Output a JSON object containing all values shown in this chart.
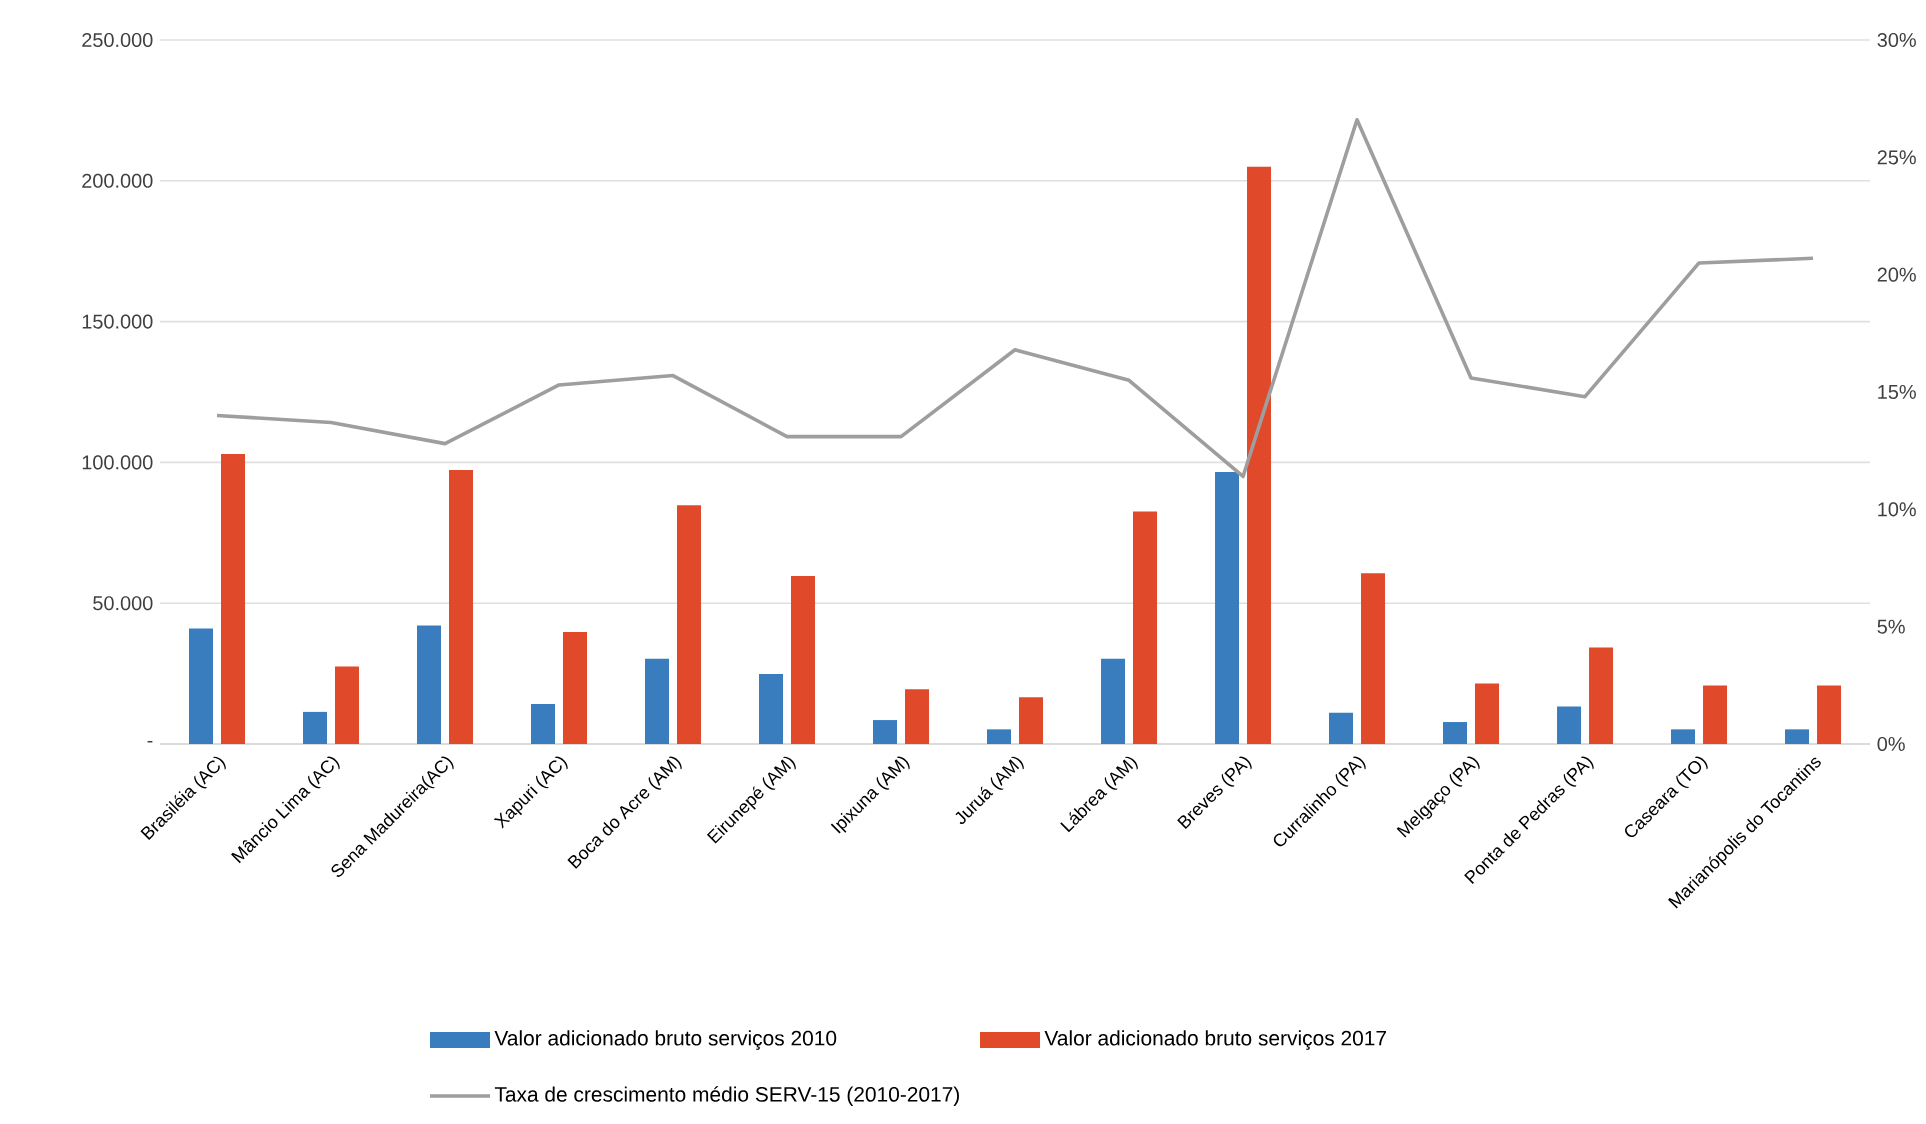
{
  "chart_data": {
    "type": "bar",
    "categories": [
      "Brasiléia (AC)",
      "Mâncio Lima (AC)",
      "Sena Madureira(AC)",
      "Xapuri (AC)",
      "Boca do Acre (AM)",
      "Eirunepé (AM)",
      "Ipixuna (AM)",
      "Juruá (AM)",
      "Lábrea (AM)",
      "Breves (PA)",
      "Curralinho (PA)",
      "Melgaço (PA)",
      "Ponta de Pedras (PA)",
      "Caseara (TO)",
      "Marianópolis do Tocantins"
    ],
    "series": [
      {
        "name": "Valor adicionado bruto serviços 2010",
        "color": "#3a7dbf",
        "values": [
          41000,
          11400,
          42100,
          14200,
          30300,
          24900,
          8500,
          5200,
          30300,
          96600,
          11100,
          7800,
          13300,
          5200,
          5200
        ]
      },
      {
        "name": "Valor adicionado bruto serviços 2017",
        "color": "#e0492a",
        "values": [
          103000,
          27500,
          97300,
          39800,
          84800,
          59700,
          19400,
          16600,
          82600,
          205000,
          60600,
          21500,
          34300,
          20800,
          20800
        ]
      },
      {
        "name": "Taxa de crescimento médio SERV-15 (2010-2017)",
        "type": "line",
        "axis": "y2",
        "color": "#9e9e9e",
        "values": [
          14.0,
          13.7,
          12.8,
          15.3,
          15.7,
          13.1,
          13.1,
          16.8,
          15.5,
          11.4,
          26.6,
          15.6,
          14.8,
          20.5,
          20.7
        ]
      }
    ],
    "ylim": [
      0,
      250000
    ],
    "yticks": [
      {
        "value": 0,
        "label": "-"
      },
      {
        "value": 50000,
        "label": "50.000"
      },
      {
        "value": 100000,
        "label": "100.000"
      },
      {
        "value": 150000,
        "label": "150.000"
      },
      {
        "value": 200000,
        "label": "200.000"
      },
      {
        "value": 250000,
        "label": "250.000"
      }
    ],
    "y2lim": [
      0,
      30
    ],
    "y2ticks": [
      {
        "value": 0,
        "label": "0%"
      },
      {
        "value": 5,
        "label": "5%"
      },
      {
        "value": 10,
        "label": "10%"
      },
      {
        "value": 15,
        "label": "15%"
      },
      {
        "value": 20,
        "label": "20%"
      },
      {
        "value": 25,
        "label": "25%"
      },
      {
        "value": 30,
        "label": "30%"
      }
    ],
    "grid": "y",
    "legend": "bottom"
  }
}
